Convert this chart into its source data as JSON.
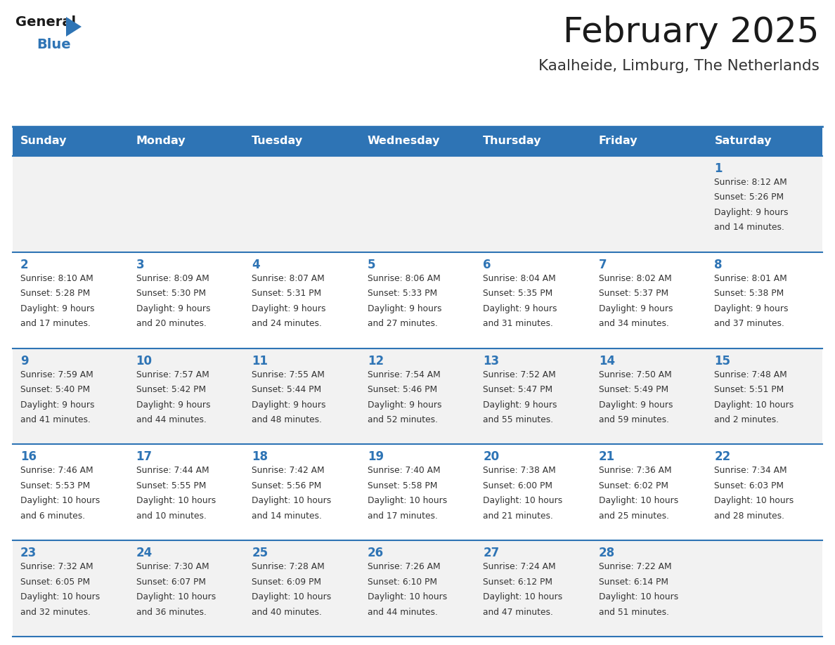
{
  "title": "February 2025",
  "subtitle": "Kaalheide, Limburg, The Netherlands",
  "days_of_week": [
    "Sunday",
    "Monday",
    "Tuesday",
    "Wednesday",
    "Thursday",
    "Friday",
    "Saturday"
  ],
  "header_bg": "#2E74B5",
  "header_text": "#FFFFFF",
  "row_bg_odd": "#F2F2F2",
  "row_bg_even": "#FFFFFF",
  "day_num_color": "#2E74B5",
  "text_color": "#333333",
  "separator_color": "#2E74B5",
  "calendar": [
    [
      {
        "day": null,
        "info": null
      },
      {
        "day": null,
        "info": null
      },
      {
        "day": null,
        "info": null
      },
      {
        "day": null,
        "info": null
      },
      {
        "day": null,
        "info": null
      },
      {
        "day": null,
        "info": null
      },
      {
        "day": 1,
        "info": "Sunrise: 8:12 AM\nSunset: 5:26 PM\nDaylight: 9 hours\nand 14 minutes."
      }
    ],
    [
      {
        "day": 2,
        "info": "Sunrise: 8:10 AM\nSunset: 5:28 PM\nDaylight: 9 hours\nand 17 minutes."
      },
      {
        "day": 3,
        "info": "Sunrise: 8:09 AM\nSunset: 5:30 PM\nDaylight: 9 hours\nand 20 minutes."
      },
      {
        "day": 4,
        "info": "Sunrise: 8:07 AM\nSunset: 5:31 PM\nDaylight: 9 hours\nand 24 minutes."
      },
      {
        "day": 5,
        "info": "Sunrise: 8:06 AM\nSunset: 5:33 PM\nDaylight: 9 hours\nand 27 minutes."
      },
      {
        "day": 6,
        "info": "Sunrise: 8:04 AM\nSunset: 5:35 PM\nDaylight: 9 hours\nand 31 minutes."
      },
      {
        "day": 7,
        "info": "Sunrise: 8:02 AM\nSunset: 5:37 PM\nDaylight: 9 hours\nand 34 minutes."
      },
      {
        "day": 8,
        "info": "Sunrise: 8:01 AM\nSunset: 5:38 PM\nDaylight: 9 hours\nand 37 minutes."
      }
    ],
    [
      {
        "day": 9,
        "info": "Sunrise: 7:59 AM\nSunset: 5:40 PM\nDaylight: 9 hours\nand 41 minutes."
      },
      {
        "day": 10,
        "info": "Sunrise: 7:57 AM\nSunset: 5:42 PM\nDaylight: 9 hours\nand 44 minutes."
      },
      {
        "day": 11,
        "info": "Sunrise: 7:55 AM\nSunset: 5:44 PM\nDaylight: 9 hours\nand 48 minutes."
      },
      {
        "day": 12,
        "info": "Sunrise: 7:54 AM\nSunset: 5:46 PM\nDaylight: 9 hours\nand 52 minutes."
      },
      {
        "day": 13,
        "info": "Sunrise: 7:52 AM\nSunset: 5:47 PM\nDaylight: 9 hours\nand 55 minutes."
      },
      {
        "day": 14,
        "info": "Sunrise: 7:50 AM\nSunset: 5:49 PM\nDaylight: 9 hours\nand 59 minutes."
      },
      {
        "day": 15,
        "info": "Sunrise: 7:48 AM\nSunset: 5:51 PM\nDaylight: 10 hours\nand 2 minutes."
      }
    ],
    [
      {
        "day": 16,
        "info": "Sunrise: 7:46 AM\nSunset: 5:53 PM\nDaylight: 10 hours\nand 6 minutes."
      },
      {
        "day": 17,
        "info": "Sunrise: 7:44 AM\nSunset: 5:55 PM\nDaylight: 10 hours\nand 10 minutes."
      },
      {
        "day": 18,
        "info": "Sunrise: 7:42 AM\nSunset: 5:56 PM\nDaylight: 10 hours\nand 14 minutes."
      },
      {
        "day": 19,
        "info": "Sunrise: 7:40 AM\nSunset: 5:58 PM\nDaylight: 10 hours\nand 17 minutes."
      },
      {
        "day": 20,
        "info": "Sunrise: 7:38 AM\nSunset: 6:00 PM\nDaylight: 10 hours\nand 21 minutes."
      },
      {
        "day": 21,
        "info": "Sunrise: 7:36 AM\nSunset: 6:02 PM\nDaylight: 10 hours\nand 25 minutes."
      },
      {
        "day": 22,
        "info": "Sunrise: 7:34 AM\nSunset: 6:03 PM\nDaylight: 10 hours\nand 28 minutes."
      }
    ],
    [
      {
        "day": 23,
        "info": "Sunrise: 7:32 AM\nSunset: 6:05 PM\nDaylight: 10 hours\nand 32 minutes."
      },
      {
        "day": 24,
        "info": "Sunrise: 7:30 AM\nSunset: 6:07 PM\nDaylight: 10 hours\nand 36 minutes."
      },
      {
        "day": 25,
        "info": "Sunrise: 7:28 AM\nSunset: 6:09 PM\nDaylight: 10 hours\nand 40 minutes."
      },
      {
        "day": 26,
        "info": "Sunrise: 7:26 AM\nSunset: 6:10 PM\nDaylight: 10 hours\nand 44 minutes."
      },
      {
        "day": 27,
        "info": "Sunrise: 7:24 AM\nSunset: 6:12 PM\nDaylight: 10 hours\nand 47 minutes."
      },
      {
        "day": 28,
        "info": "Sunrise: 7:22 AM\nSunset: 6:14 PM\nDaylight: 10 hours\nand 51 minutes."
      },
      {
        "day": null,
        "info": null
      }
    ]
  ]
}
